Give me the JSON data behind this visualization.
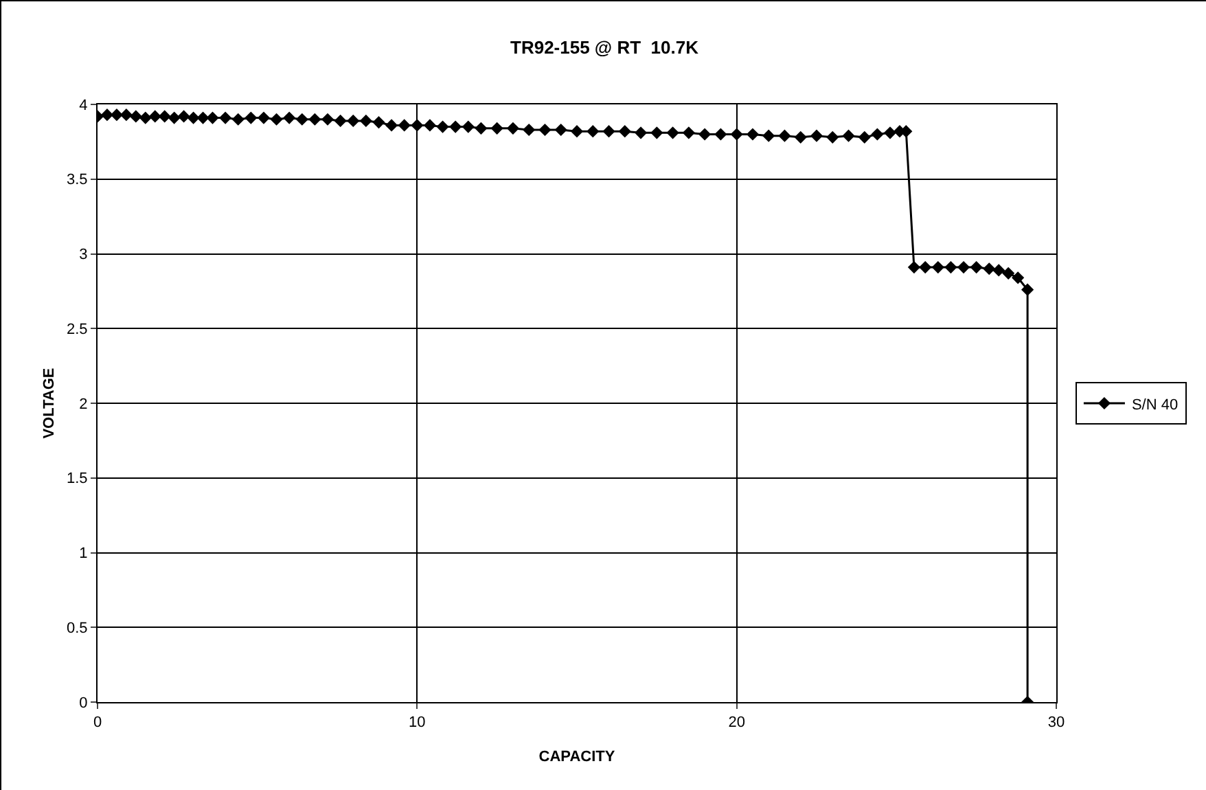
{
  "chart_data": {
    "type": "line",
    "title": "TR92-155 @ RT  10.7K",
    "xlabel": "CAPACITY",
    "ylabel": "VOLTAGE",
    "xlim": [
      0,
      30
    ],
    "xticks": [
      0,
      10,
      20,
      30
    ],
    "ylim": [
      0,
      4
    ],
    "yticks": [
      0,
      0.5,
      1,
      1.5,
      2,
      2.5,
      3,
      3.5,
      4
    ],
    "grid": true,
    "legend": "right",
    "marker": "diamond",
    "line_style": "solid",
    "series": [
      {
        "name": "S/N 40",
        "color": "#000000",
        "x": [
          0,
          0.3,
          0.6,
          0.9,
          1.2,
          1.5,
          1.8,
          2.1,
          2.4,
          2.7,
          3.0,
          3.3,
          3.6,
          4.0,
          4.4,
          4.8,
          5.2,
          5.6,
          6.0,
          6.4,
          6.8,
          7.2,
          7.6,
          8.0,
          8.4,
          8.8,
          9.2,
          9.6,
          10.0,
          10.4,
          10.8,
          11.2,
          11.6,
          12.0,
          12.5,
          13.0,
          13.5,
          14.0,
          14.5,
          15.0,
          15.5,
          16.0,
          16.5,
          17.0,
          17.5,
          18.0,
          18.5,
          19.0,
          19.5,
          20.0,
          20.5,
          21.0,
          21.5,
          22.0,
          22.5,
          23.0,
          23.5,
          24.0,
          24.4,
          24.8,
          25.1,
          25.3,
          25.55,
          25.9,
          26.3,
          26.7,
          27.1,
          27.5,
          27.9,
          28.2,
          28.5,
          28.8,
          29.1,
          29.1
        ],
        "values": [
          3.92,
          3.93,
          3.93,
          3.93,
          3.92,
          3.91,
          3.92,
          3.92,
          3.91,
          3.92,
          3.91,
          3.91,
          3.91,
          3.91,
          3.9,
          3.91,
          3.91,
          3.9,
          3.91,
          3.9,
          3.9,
          3.9,
          3.89,
          3.89,
          3.89,
          3.88,
          3.86,
          3.86,
          3.86,
          3.86,
          3.85,
          3.85,
          3.85,
          3.84,
          3.84,
          3.84,
          3.83,
          3.83,
          3.83,
          3.82,
          3.82,
          3.82,
          3.82,
          3.81,
          3.81,
          3.81,
          3.81,
          3.8,
          3.8,
          3.8,
          3.8,
          3.79,
          3.79,
          3.78,
          3.79,
          3.78,
          3.79,
          3.78,
          3.8,
          3.81,
          3.82,
          3.82,
          2.91,
          2.91,
          2.91,
          2.91,
          2.91,
          2.91,
          2.9,
          2.89,
          2.87,
          2.84,
          2.76,
          0
        ]
      }
    ]
  }
}
